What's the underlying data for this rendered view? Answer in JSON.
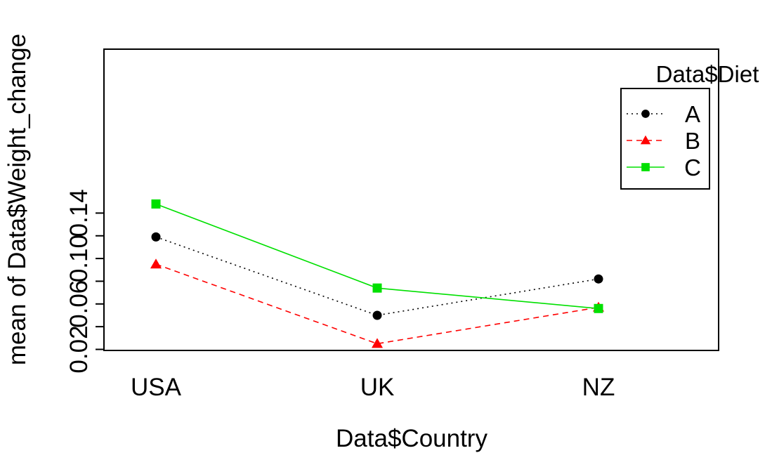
{
  "chart_data": {
    "type": "line",
    "xlabel": "Data$Country",
    "ylabel": "mean of  Data$Weight_change",
    "categories": [
      "USA",
      "UK",
      "NZ"
    ],
    "yticks": [
      "0.02",
      "0.06",
      "0.10",
      "0.14"
    ],
    "ylim": [
      0.02,
      0.152
    ],
    "legend": {
      "title": "Data$Diet",
      "placement": "top-right"
    },
    "series": [
      {
        "name": "A",
        "values": [
          0.119,
          0.05,
          0.082
        ],
        "color": "#000000",
        "marker": "circle",
        "dash": "dotted"
      },
      {
        "name": "B",
        "values": [
          0.095,
          0.025,
          0.057
        ],
        "color": "#ff0000",
        "marker": "triangle",
        "dash": "dashed"
      },
      {
        "name": "C",
        "values": [
          0.148,
          0.074,
          0.056
        ],
        "color": "#00e000",
        "marker": "square",
        "dash": "solid"
      }
    ]
  }
}
